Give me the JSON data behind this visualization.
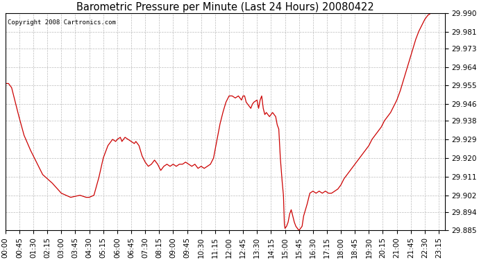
{
  "title": "Barometric Pressure per Minute (Last 24 Hours) 20080422",
  "copyright": "Copyright 2008 Cartronics.com",
  "line_color": "#cc0000",
  "bg_color": "#ffffff",
  "plot_bg_color": "#ffffff",
  "grid_color": "#bbbbbb",
  "ylim": [
    29.885,
    29.99
  ],
  "yticks": [
    29.885,
    29.894,
    29.902,
    29.911,
    29.92,
    29.929,
    29.938,
    29.946,
    29.955,
    29.964,
    29.973,
    29.981,
    29.99
  ],
  "xtick_labels": [
    "00:00",
    "00:45",
    "01:30",
    "02:15",
    "03:00",
    "03:45",
    "04:30",
    "05:15",
    "06:00",
    "06:45",
    "07:30",
    "08:15",
    "09:00",
    "09:45",
    "10:30",
    "11:15",
    "12:00",
    "12:45",
    "13:30",
    "14:15",
    "15:00",
    "15:45",
    "16:30",
    "17:15",
    "18:00",
    "18:45",
    "19:30",
    "20:15",
    "21:00",
    "21:45",
    "22:30",
    "23:15"
  ],
  "keypoints": [
    [
      0,
      29.956
    ],
    [
      10,
      29.956
    ],
    [
      20,
      29.954
    ],
    [
      40,
      29.942
    ],
    [
      60,
      29.931
    ],
    [
      80,
      29.924
    ],
    [
      100,
      29.918
    ],
    [
      120,
      29.912
    ],
    [
      150,
      29.908
    ],
    [
      180,
      29.903
    ],
    [
      210,
      29.901
    ],
    [
      240,
      29.902
    ],
    [
      260,
      29.901
    ],
    [
      270,
      29.901
    ],
    [
      285,
      29.902
    ],
    [
      300,
      29.91
    ],
    [
      315,
      29.92
    ],
    [
      330,
      29.926
    ],
    [
      345,
      29.929
    ],
    [
      355,
      29.928
    ],
    [
      360,
      29.929
    ],
    [
      370,
      29.93
    ],
    [
      375,
      29.928
    ],
    [
      385,
      29.93
    ],
    [
      395,
      29.929
    ],
    [
      405,
      29.928
    ],
    [
      415,
      29.927
    ],
    [
      420,
      29.928
    ],
    [
      430,
      29.926
    ],
    [
      440,
      29.921
    ],
    [
      450,
      29.918
    ],
    [
      460,
      29.916
    ],
    [
      470,
      29.917
    ],
    [
      480,
      29.919
    ],
    [
      490,
      29.917
    ],
    [
      500,
      29.914
    ],
    [
      510,
      29.916
    ],
    [
      520,
      29.917
    ],
    [
      530,
      29.916
    ],
    [
      540,
      29.917
    ],
    [
      550,
      29.916
    ],
    [
      560,
      29.917
    ],
    [
      570,
      29.917
    ],
    [
      580,
      29.918
    ],
    [
      590,
      29.917
    ],
    [
      600,
      29.916
    ],
    [
      610,
      29.917
    ],
    [
      620,
      29.915
    ],
    [
      630,
      29.916
    ],
    [
      640,
      29.915
    ],
    [
      650,
      29.916
    ],
    [
      660,
      29.917
    ],
    [
      670,
      29.92
    ],
    [
      680,
      29.928
    ],
    [
      690,
      29.936
    ],
    [
      700,
      29.942
    ],
    [
      710,
      29.947
    ],
    [
      720,
      29.95
    ],
    [
      730,
      29.95
    ],
    [
      740,
      29.949
    ],
    [
      750,
      29.95
    ],
    [
      755,
      29.949
    ],
    [
      760,
      29.948
    ],
    [
      765,
      29.95
    ],
    [
      770,
      29.95
    ],
    [
      775,
      29.947
    ],
    [
      780,
      29.946
    ],
    [
      790,
      29.944
    ],
    [
      795,
      29.946
    ],
    [
      800,
      29.947
    ],
    [
      810,
      29.948
    ],
    [
      815,
      29.944
    ],
    [
      820,
      29.948
    ],
    [
      825,
      29.95
    ],
    [
      830,
      29.944
    ],
    [
      835,
      29.941
    ],
    [
      840,
      29.942
    ],
    [
      850,
      29.94
    ],
    [
      860,
      29.942
    ],
    [
      870,
      29.94
    ],
    [
      875,
      29.936
    ],
    [
      880,
      29.934
    ],
    [
      885,
      29.92
    ],
    [
      890,
      29.91
    ],
    [
      895,
      29.902
    ],
    [
      898,
      29.888
    ],
    [
      900,
      29.886
    ],
    [
      905,
      29.887
    ],
    [
      910,
      29.889
    ],
    [
      915,
      29.893
    ],
    [
      920,
      29.895
    ],
    [
      925,
      29.892
    ],
    [
      930,
      29.889
    ],
    [
      935,
      29.887
    ],
    [
      940,
      29.886
    ],
    [
      945,
      29.885
    ],
    [
      950,
      29.886
    ],
    [
      955,
      29.887
    ],
    [
      960,
      29.892
    ],
    [
      970,
      29.897
    ],
    [
      980,
      29.903
    ],
    [
      990,
      29.904
    ],
    [
      1000,
      29.903
    ],
    [
      1010,
      29.904
    ],
    [
      1020,
      29.903
    ],
    [
      1030,
      29.904
    ],
    [
      1040,
      29.903
    ],
    [
      1050,
      29.903
    ],
    [
      1060,
      29.904
    ],
    [
      1070,
      29.905
    ],
    [
      1080,
      29.907
    ],
    [
      1090,
      29.91
    ],
    [
      1100,
      29.912
    ],
    [
      1110,
      29.914
    ],
    [
      1120,
      29.916
    ],
    [
      1130,
      29.918
    ],
    [
      1140,
      29.92
    ],
    [
      1150,
      29.922
    ],
    [
      1160,
      29.924
    ],
    [
      1170,
      29.926
    ],
    [
      1180,
      29.929
    ],
    [
      1190,
      29.931
    ],
    [
      1200,
      29.933
    ],
    [
      1210,
      29.935
    ],
    [
      1220,
      29.938
    ],
    [
      1230,
      29.94
    ],
    [
      1240,
      29.942
    ],
    [
      1250,
      29.945
    ],
    [
      1260,
      29.948
    ],
    [
      1270,
      29.952
    ],
    [
      1280,
      29.957
    ],
    [
      1290,
      29.962
    ],
    [
      1300,
      29.967
    ],
    [
      1310,
      29.972
    ],
    [
      1320,
      29.977
    ],
    [
      1330,
      29.981
    ],
    [
      1340,
      29.984
    ],
    [
      1350,
      29.987
    ],
    [
      1360,
      29.989
    ],
    [
      1370,
      29.99
    ],
    [
      1380,
      29.99
    ],
    [
      1395,
      29.99
    ],
    [
      1415,
      29.99
    ]
  ]
}
